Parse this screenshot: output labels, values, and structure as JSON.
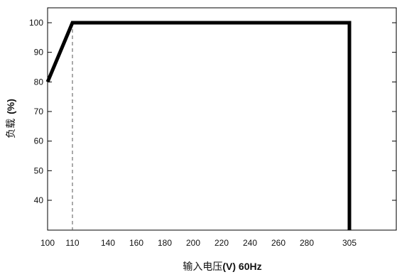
{
  "chart_data": {
    "type": "line",
    "xlabel": "输入电压(V) 60Hz",
    "xlabel_parts": {
      "cjk": "输入电压",
      "latin": "(V) 60Hz"
    },
    "ylabel": "负载 (%)",
    "ylabel_parts": {
      "cjk": "负载",
      "latin": "(%)"
    },
    "x_ticks": [
      100,
      110,
      140,
      160,
      180,
      200,
      220,
      240,
      260,
      280,
      305
    ],
    "y_ticks": [
      40,
      50,
      60,
      70,
      80,
      90,
      100
    ],
    "xlim": [
      100,
      315
    ],
    "ylim": [
      30,
      104
    ],
    "grid": false,
    "series": [
      {
        "x": [
          100,
          110,
          305,
          305
        ],
        "y": [
          80,
          100,
          100,
          30
        ]
      }
    ],
    "annotations": [
      {
        "type": "dashed-vertical-line",
        "x": 110,
        "y_from": 30,
        "y_to": 100
      }
    ],
    "colors": {
      "line": "#000000",
      "axis": "#000000"
    }
  }
}
